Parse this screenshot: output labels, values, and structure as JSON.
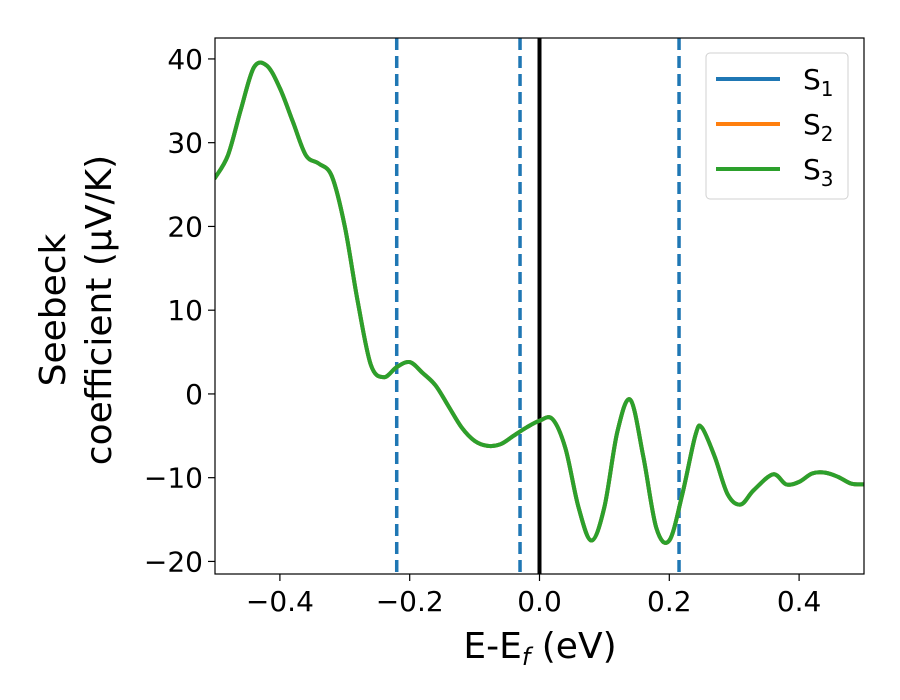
{
  "chart_data": {
    "type": "line",
    "xlabel": {
      "main": "E-E",
      "sub": "f",
      "unit": " (eV)"
    },
    "ylabel": {
      "line1": "Seebeck",
      "line2": "coefficient  (μV/K)"
    },
    "xlim": [
      -0.5,
      0.5
    ],
    "ylim": [
      -21.5,
      42.5
    ],
    "x_ticks": [
      -0.4,
      -0.2,
      0.0,
      0.2,
      0.4
    ],
    "x_tick_labels": [
      "−0.4",
      "−0.2",
      "0.0",
      "0.2",
      "0.4"
    ],
    "y_ticks": [
      -20,
      -10,
      0,
      10,
      20,
      30,
      40
    ],
    "y_tick_labels": [
      "−20",
      "−10",
      "0",
      "10",
      "20",
      "30",
      "40"
    ],
    "grid": false,
    "legend_position": "top-right",
    "fermi_line": {
      "x": 0.0,
      "color": "#000000"
    },
    "vlines": [
      {
        "x": -0.22,
        "color": "#1f77b4",
        "style": "dashed"
      },
      {
        "x": -0.03,
        "color": "#1f77b4",
        "style": "dashed"
      },
      {
        "x": 0.215,
        "color": "#1f77b4",
        "style": "dashed"
      }
    ],
    "x": [
      -0.5,
      -0.48,
      -0.46,
      -0.44,
      -0.42,
      -0.4,
      -0.38,
      -0.36,
      -0.34,
      -0.32,
      -0.3,
      -0.28,
      -0.26,
      -0.24,
      -0.22,
      -0.2,
      -0.18,
      -0.16,
      -0.14,
      -0.12,
      -0.1,
      -0.08,
      -0.06,
      -0.04,
      -0.02,
      0.0,
      0.02,
      0.04,
      0.06,
      0.08,
      0.1,
      0.12,
      0.14,
      0.16,
      0.18,
      0.2,
      0.22,
      0.24,
      0.25,
      0.27,
      0.29,
      0.31,
      0.33,
      0.36,
      0.38,
      0.4,
      0.42,
      0.44,
      0.46,
      0.48,
      0.5
    ],
    "series": [
      {
        "name": "S",
        "sub": "1",
        "color": "#1f77b4",
        "values": [
          25.8,
          28.5,
          34.0,
          39.0,
          39.2,
          36.5,
          32.5,
          28.5,
          27.5,
          26.0,
          20.0,
          11.0,
          3.5,
          2.0,
          3.2,
          3.8,
          2.5,
          1.0,
          -1.5,
          -4.0,
          -5.6,
          -6.2,
          -6.0,
          -5.0,
          -4.0,
          -3.2,
          -3.0,
          -6.5,
          -13.5,
          -17.5,
          -13.5,
          -4.5,
          -0.7,
          -7.5,
          -16.0,
          -17.5,
          -12.0,
          -5.0,
          -4.0,
          -7.5,
          -12.0,
          -13.2,
          -11.5,
          -9.6,
          -10.8,
          -10.5,
          -9.5,
          -9.4,
          -9.9,
          -10.7,
          -10.8
        ]
      },
      {
        "name": "S",
        "sub": "2",
        "color": "#ff7f0e",
        "values": [
          25.8,
          28.5,
          34.0,
          39.0,
          39.2,
          36.5,
          32.5,
          28.5,
          27.5,
          26.0,
          20.0,
          11.0,
          3.5,
          2.0,
          3.2,
          3.8,
          2.5,
          1.0,
          -1.5,
          -4.0,
          -5.6,
          -6.2,
          -6.0,
          -5.0,
          -4.0,
          -3.2,
          -3.0,
          -6.5,
          -13.5,
          -17.5,
          -13.5,
          -4.5,
          -0.7,
          -7.5,
          -16.0,
          -17.5,
          -12.0,
          -5.0,
          -4.0,
          -7.5,
          -12.0,
          -13.2,
          -11.5,
          -9.6,
          -10.8,
          -10.5,
          -9.5,
          -9.4,
          -9.9,
          -10.7,
          -10.8
        ]
      },
      {
        "name": "S",
        "sub": "3",
        "color": "#2ca02c",
        "values": [
          25.8,
          28.5,
          34.0,
          39.0,
          39.2,
          36.5,
          32.5,
          28.5,
          27.5,
          26.0,
          20.0,
          11.0,
          3.5,
          2.0,
          3.2,
          3.8,
          2.5,
          1.0,
          -1.5,
          -4.0,
          -5.6,
          -6.2,
          -6.0,
          -5.0,
          -4.0,
          -3.2,
          -3.0,
          -6.5,
          -13.5,
          -17.5,
          -13.5,
          -4.5,
          -0.7,
          -7.5,
          -16.0,
          -17.5,
          -12.0,
          -5.0,
          -4.0,
          -7.5,
          -12.0,
          -13.2,
          -11.5,
          -9.6,
          -10.8,
          -10.5,
          -9.5,
          -9.4,
          -9.9,
          -10.7,
          -10.8
        ]
      }
    ]
  }
}
